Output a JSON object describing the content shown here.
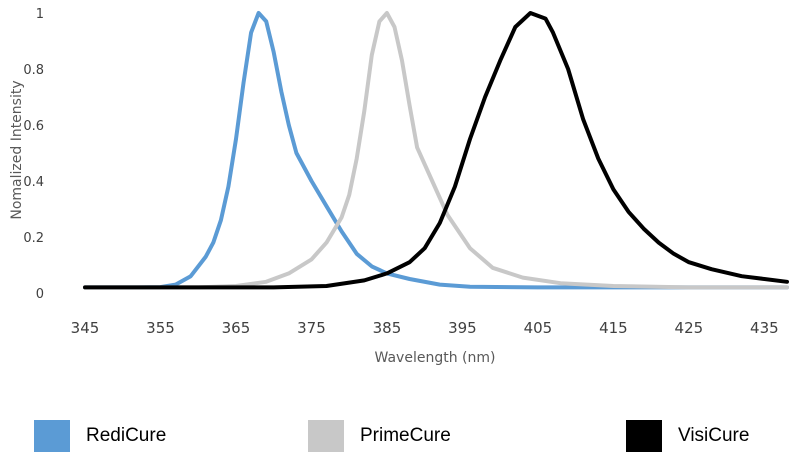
{
  "chart_data": {
    "type": "line",
    "title": "",
    "xlabel": "Wavelength (nm)",
    "ylabel": "Nomalized Intensity",
    "xlim": [
      345,
      438
    ],
    "ylim": [
      0,
      1
    ],
    "x_ticks": [
      "345",
      "355",
      "365",
      "375",
      "385",
      "395",
      "405",
      "415",
      "425",
      "435"
    ],
    "y_ticks": [
      "0",
      "0.2",
      "0.4",
      "0.6",
      "0.8",
      "1"
    ],
    "grid": false,
    "legend_position": "bottom",
    "series": [
      {
        "name": "RediCure",
        "color": "#5b9bd5",
        "points": [
          [
            345,
            0.02
          ],
          [
            352,
            0.02
          ],
          [
            355,
            0.021
          ],
          [
            357,
            0.03
          ],
          [
            359,
            0.06
          ],
          [
            361,
            0.13
          ],
          [
            362,
            0.18
          ],
          [
            363,
            0.26
          ],
          [
            364,
            0.38
          ],
          [
            365,
            0.55
          ],
          [
            366,
            0.75
          ],
          [
            367,
            0.93
          ],
          [
            368,
            1.0
          ],
          [
            369,
            0.97
          ],
          [
            370,
            0.86
          ],
          [
            371,
            0.72
          ],
          [
            372,
            0.6
          ],
          [
            373,
            0.5
          ],
          [
            375,
            0.4
          ],
          [
            377,
            0.31
          ],
          [
            379,
            0.22
          ],
          [
            381,
            0.14
          ],
          [
            383,
            0.095
          ],
          [
            385,
            0.07
          ],
          [
            388,
            0.05
          ],
          [
            392,
            0.03
          ],
          [
            396,
            0.022
          ],
          [
            405,
            0.02
          ],
          [
            438,
            0.02
          ]
        ]
      },
      {
        "name": "PrimeCure",
        "color": "#c8c8c8",
        "points": [
          [
            345,
            0.02
          ],
          [
            360,
            0.02
          ],
          [
            365,
            0.025
          ],
          [
            369,
            0.04
          ],
          [
            372,
            0.07
          ],
          [
            375,
            0.12
          ],
          [
            377,
            0.18
          ],
          [
            379,
            0.27
          ],
          [
            380,
            0.35
          ],
          [
            381,
            0.48
          ],
          [
            382,
            0.65
          ],
          [
            383,
            0.85
          ],
          [
            384,
            0.97
          ],
          [
            385,
            1.0
          ],
          [
            386,
            0.95
          ],
          [
            387,
            0.83
          ],
          [
            388,
            0.67
          ],
          [
            389,
            0.52
          ],
          [
            391,
            0.4
          ],
          [
            393,
            0.28
          ],
          [
            396,
            0.16
          ],
          [
            399,
            0.09
          ],
          [
            403,
            0.055
          ],
          [
            408,
            0.035
          ],
          [
            415,
            0.025
          ],
          [
            425,
            0.02
          ],
          [
            438,
            0.02
          ]
        ]
      },
      {
        "name": "VisiCure",
        "color": "#000000",
        "points": [
          [
            345,
            0.02
          ],
          [
            370,
            0.02
          ],
          [
            377,
            0.025
          ],
          [
            382,
            0.045
          ],
          [
            385,
            0.07
          ],
          [
            388,
            0.11
          ],
          [
            390,
            0.16
          ],
          [
            392,
            0.25
          ],
          [
            394,
            0.38
          ],
          [
            396,
            0.55
          ],
          [
            398,
            0.7
          ],
          [
            400,
            0.83
          ],
          [
            402,
            0.95
          ],
          [
            404,
            1.0
          ],
          [
            406,
            0.98
          ],
          [
            407,
            0.93
          ],
          [
            409,
            0.8
          ],
          [
            411,
            0.62
          ],
          [
            413,
            0.48
          ],
          [
            415,
            0.37
          ],
          [
            417,
            0.29
          ],
          [
            419,
            0.23
          ],
          [
            421,
            0.18
          ],
          [
            423,
            0.14
          ],
          [
            425,
            0.11
          ],
          [
            428,
            0.085
          ],
          [
            432,
            0.06
          ],
          [
            435,
            0.05
          ],
          [
            438,
            0.04
          ]
        ]
      }
    ]
  }
}
